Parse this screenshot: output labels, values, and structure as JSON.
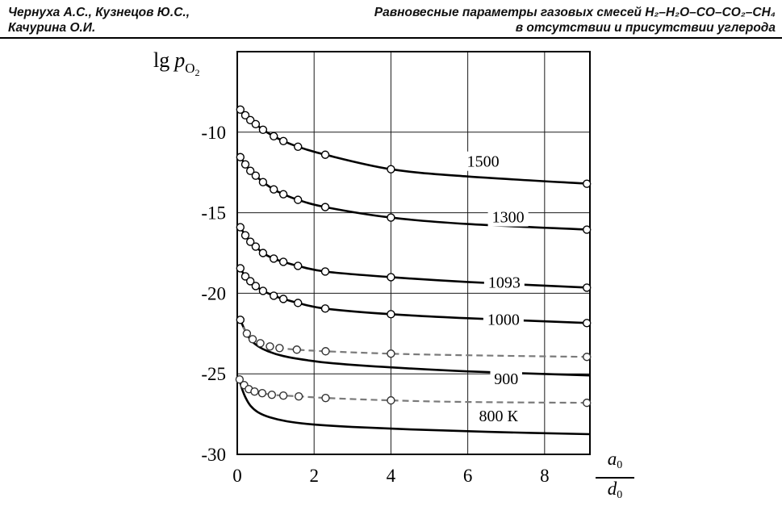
{
  "header": {
    "authors_line1": "Чернуха А.С., Кузнецов Ю.С.,",
    "authors_line2": "Качурина О.И.",
    "title_line1": "Равновесные параметры газовых смесей H₂–H₂O–CO–CO₂–CH₄",
    "title_line2": "в отсутствии и присутствии углерода"
  },
  "axes": {
    "y_label": {
      "prefix": "lg",
      "symbol": "p",
      "sub": "O",
      "subsub": "2"
    },
    "x_label": {
      "num_symbol": "a",
      "num_sub": "0",
      "den_symbol": "d",
      "den_sub": "0"
    }
  },
  "chart_data": {
    "type": "line",
    "title": "",
    "xlabel": "a0/d0",
    "ylabel": "lg pO2",
    "xlim": [
      0,
      9.18
    ],
    "ylim": [
      -30,
      -5
    ],
    "x_ticks": [
      0,
      2,
      4,
      6,
      8
    ],
    "y_ticks": [
      -10,
      -15,
      -20,
      -25,
      -30
    ],
    "x_gridlines": [
      2,
      4,
      6,
      8
    ],
    "y_gridlines": [
      -10,
      -15,
      -20,
      -25
    ],
    "grid": "on",
    "colors": {
      "solid": "#000000",
      "dashed": "#7a7a7a"
    },
    "series": [
      {
        "name": "1500 K",
        "style": "solid",
        "color": "#000000",
        "points": [
          [
            0.08,
            -8.6
          ],
          [
            0.21,
            -8.95
          ],
          [
            0.34,
            -9.25
          ],
          [
            0.48,
            -9.5
          ],
          [
            0.67,
            -9.85
          ],
          [
            0.95,
            -10.25
          ],
          [
            1.2,
            -10.55
          ],
          [
            1.58,
            -10.9
          ],
          [
            2.29,
            -11.4
          ],
          [
            4.0,
            -12.3
          ],
          [
            6.0,
            -12.75
          ],
          [
            9.15,
            -13.2
          ]
        ],
        "markers": [
          [
            0.08,
            -8.6
          ],
          [
            0.21,
            -8.95
          ],
          [
            0.34,
            -9.25
          ],
          [
            0.48,
            -9.5
          ],
          [
            0.67,
            -9.85
          ],
          [
            0.95,
            -10.25
          ],
          [
            1.2,
            -10.55
          ],
          [
            1.58,
            -10.9
          ],
          [
            2.29,
            -11.4
          ],
          [
            4.0,
            -12.3
          ],
          [
            9.1,
            -13.2
          ]
        ],
        "label": {
          "text": "1500",
          "x": 6.4,
          "y": -11.8
        }
      },
      {
        "name": "1300 K",
        "style": "solid",
        "color": "#000000",
        "points": [
          [
            0.08,
            -11.55
          ],
          [
            0.21,
            -12.0
          ],
          [
            0.34,
            -12.4
          ],
          [
            0.48,
            -12.7
          ],
          [
            0.67,
            -13.1
          ],
          [
            0.95,
            -13.55
          ],
          [
            1.2,
            -13.85
          ],
          [
            1.58,
            -14.2
          ],
          [
            2.29,
            -14.65
          ],
          [
            4.0,
            -15.3
          ],
          [
            6.0,
            -15.7
          ],
          [
            9.15,
            -16.05
          ]
        ],
        "markers": [
          [
            0.08,
            -11.55
          ],
          [
            0.21,
            -12.0
          ],
          [
            0.34,
            -12.4
          ],
          [
            0.48,
            -12.7
          ],
          [
            0.67,
            -13.1
          ],
          [
            0.95,
            -13.55
          ],
          [
            1.2,
            -13.85
          ],
          [
            1.58,
            -14.2
          ],
          [
            2.29,
            -14.65
          ],
          [
            4.0,
            -15.3
          ],
          [
            9.1,
            -16.05
          ]
        ],
        "label": {
          "text": "1300",
          "x": 7.05,
          "y": -15.25
        }
      },
      {
        "name": "1093 K",
        "style": "solid",
        "color": "#000000",
        "points": [
          [
            0.08,
            -15.9
          ],
          [
            0.21,
            -16.4
          ],
          [
            0.34,
            -16.8
          ],
          [
            0.48,
            -17.1
          ],
          [
            0.67,
            -17.5
          ],
          [
            0.95,
            -17.85
          ],
          [
            1.2,
            -18.05
          ],
          [
            1.58,
            -18.3
          ],
          [
            2.29,
            -18.65
          ],
          [
            4.0,
            -19.0
          ],
          [
            6.0,
            -19.3
          ],
          [
            9.15,
            -19.65
          ]
        ],
        "markers": [
          [
            0.08,
            -15.9
          ],
          [
            0.21,
            -16.4
          ],
          [
            0.34,
            -16.8
          ],
          [
            0.48,
            -17.1
          ],
          [
            0.67,
            -17.5
          ],
          [
            0.95,
            -17.85
          ],
          [
            1.2,
            -18.05
          ],
          [
            1.58,
            -18.3
          ],
          [
            2.29,
            -18.65
          ],
          [
            4.0,
            -19.0
          ],
          [
            9.1,
            -19.65
          ]
        ],
        "label": {
          "text": "1093",
          "x": 6.95,
          "y": -19.3
        }
      },
      {
        "name": "1000 K",
        "style": "solid",
        "color": "#000000",
        "points": [
          [
            0.08,
            -18.45
          ],
          [
            0.21,
            -18.95
          ],
          [
            0.34,
            -19.25
          ],
          [
            0.48,
            -19.55
          ],
          [
            0.67,
            -19.85
          ],
          [
            0.95,
            -20.15
          ],
          [
            1.2,
            -20.35
          ],
          [
            1.58,
            -20.6
          ],
          [
            2.29,
            -20.95
          ],
          [
            4.0,
            -21.3
          ],
          [
            6.0,
            -21.55
          ],
          [
            9.15,
            -21.85
          ]
        ],
        "markers": [
          [
            0.08,
            -18.45
          ],
          [
            0.21,
            -18.95
          ],
          [
            0.34,
            -19.25
          ],
          [
            0.48,
            -19.55
          ],
          [
            0.67,
            -19.85
          ],
          [
            0.95,
            -20.15
          ],
          [
            1.2,
            -20.35
          ],
          [
            1.58,
            -20.6
          ],
          [
            2.29,
            -20.95
          ],
          [
            4.0,
            -21.3
          ],
          [
            9.1,
            -21.85
          ]
        ],
        "label": {
          "text": "1000",
          "x": 6.93,
          "y": -21.6
        }
      },
      {
        "name": "900 K",
        "style": "solid",
        "color": "#000000",
        "points": [
          [
            0.08,
            -21.65
          ],
          [
            0.2,
            -22.3
          ],
          [
            0.35,
            -22.9
          ],
          [
            0.55,
            -23.3
          ],
          [
            0.8,
            -23.6
          ],
          [
            1.2,
            -23.9
          ],
          [
            1.8,
            -24.15
          ],
          [
            2.5,
            -24.35
          ],
          [
            4.0,
            -24.6
          ],
          [
            6.0,
            -24.85
          ],
          [
            9.18,
            -25.1
          ]
        ],
        "markers": [
          [
            0.08,
            -21.65
          ]
        ],
        "label": {
          "text": "900",
          "x": 7.0,
          "y": -25.3
        }
      },
      {
        "name": "900 K with carbon",
        "style": "dashed",
        "color": "#7a7a7a",
        "points": [
          [
            0.15,
            -22.1
          ],
          [
            0.25,
            -22.5
          ],
          [
            0.4,
            -22.85
          ],
          [
            0.6,
            -23.1
          ],
          [
            0.85,
            -23.3
          ],
          [
            1.1,
            -23.4
          ],
          [
            1.55,
            -23.5
          ],
          [
            2.3,
            -23.6
          ],
          [
            4.0,
            -23.75
          ],
          [
            6.0,
            -23.85
          ],
          [
            9.1,
            -23.95
          ]
        ],
        "markers": [
          [
            0.25,
            -22.5
          ],
          [
            0.4,
            -22.85
          ],
          [
            0.6,
            -23.1
          ],
          [
            0.85,
            -23.3
          ],
          [
            1.1,
            -23.4
          ],
          [
            1.55,
            -23.5
          ],
          [
            2.3,
            -23.6
          ],
          [
            4.0,
            -23.75
          ],
          [
            9.1,
            -23.95
          ]
        ],
        "label": null
      },
      {
        "name": "800 K",
        "style": "solid",
        "color": "#000000",
        "points": [
          [
            0.05,
            -25.3
          ],
          [
            0.12,
            -25.9
          ],
          [
            0.22,
            -26.5
          ],
          [
            0.35,
            -27.0
          ],
          [
            0.55,
            -27.4
          ],
          [
            0.85,
            -27.7
          ],
          [
            1.3,
            -27.95
          ],
          [
            2.0,
            -28.15
          ],
          [
            3.0,
            -28.3
          ],
          [
            4.5,
            -28.45
          ],
          [
            6.5,
            -28.6
          ],
          [
            9.18,
            -28.75
          ]
        ],
        "markers": [],
        "label": {
          "text": "800 К",
          "x": 6.8,
          "y": -27.6
        }
      },
      {
        "name": "800 K with carbon",
        "style": "dashed",
        "color": "#7a7a7a",
        "points": [
          [
            0.06,
            -25.35
          ],
          [
            0.18,
            -25.7
          ],
          [
            0.3,
            -25.95
          ],
          [
            0.45,
            -26.1
          ],
          [
            0.65,
            -26.2
          ],
          [
            0.9,
            -26.3
          ],
          [
            1.2,
            -26.35
          ],
          [
            1.6,
            -26.4
          ],
          [
            2.3,
            -26.5
          ],
          [
            4.0,
            -26.65
          ],
          [
            6.0,
            -26.75
          ],
          [
            9.1,
            -26.8
          ]
        ],
        "markers": [
          [
            0.06,
            -25.35
          ],
          [
            0.18,
            -25.7
          ],
          [
            0.3,
            -25.95
          ],
          [
            0.45,
            -26.1
          ],
          [
            0.65,
            -26.2
          ],
          [
            0.9,
            -26.3
          ],
          [
            1.2,
            -26.35
          ],
          [
            1.6,
            -26.4
          ],
          [
            2.3,
            -26.5
          ],
          [
            4.0,
            -26.65
          ],
          [
            9.1,
            -26.8
          ]
        ],
        "label": null
      }
    ]
  }
}
